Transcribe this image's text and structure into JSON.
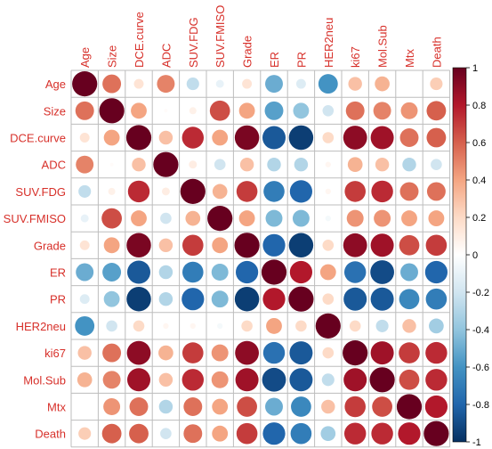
{
  "chart_data": {
    "type": "heatmap",
    "variables": [
      "Age",
      "Size",
      "DCE.curve",
      "ADC",
      "SUV.FDG",
      "SUV.FMISO",
      "Grade",
      "ER",
      "PR",
      "HER2neu",
      "ki67",
      "Mol.Sub",
      "Mtx",
      "Death"
    ],
    "matrix": [
      [
        1.0,
        0.55,
        0.15,
        0.5,
        -0.25,
        -0.1,
        0.15,
        -0.5,
        -0.15,
        -0.6,
        0.3,
        0.35,
        0.0,
        0.25
      ],
      [
        0.55,
        1.0,
        0.4,
        0.02,
        0.08,
        0.65,
        0.4,
        -0.55,
        -0.4,
        -0.2,
        0.55,
        0.5,
        0.45,
        0.6
      ],
      [
        0.15,
        0.4,
        1.0,
        0.3,
        0.75,
        0.4,
        0.95,
        -0.85,
        -0.95,
        0.2,
        0.9,
        0.85,
        0.55,
        0.6
      ],
      [
        0.5,
        0.02,
        0.3,
        1.0,
        0.1,
        -0.2,
        0.3,
        -0.3,
        -0.3,
        0.05,
        0.35,
        0.3,
        -0.3,
        -0.2
      ],
      [
        -0.25,
        0.08,
        0.75,
        0.1,
        1.0,
        0.35,
        0.7,
        -0.7,
        -0.8,
        0.05,
        0.7,
        0.75,
        0.55,
        0.55
      ],
      [
        -0.1,
        0.65,
        0.4,
        -0.2,
        0.35,
        1.0,
        0.4,
        -0.45,
        -0.45,
        -0.05,
        0.45,
        0.45,
        0.4,
        0.4
      ],
      [
        0.15,
        0.4,
        0.95,
        0.3,
        0.7,
        0.4,
        1.0,
        -0.8,
        -0.95,
        0.2,
        0.9,
        0.85,
        0.65,
        0.7
      ],
      [
        -0.5,
        -0.55,
        -0.85,
        -0.3,
        -0.7,
        -0.45,
        -0.8,
        1.0,
        0.8,
        0.4,
        -0.75,
        -0.9,
        -0.5,
        -0.8
      ],
      [
        -0.15,
        -0.4,
        -0.95,
        -0.3,
        -0.8,
        -0.45,
        -0.95,
        0.8,
        1.0,
        0.2,
        -0.85,
        -0.85,
        -0.65,
        -0.7
      ],
      [
        -0.6,
        -0.2,
        0.2,
        0.05,
        0.05,
        -0.05,
        0.2,
        0.4,
        0.2,
        1.0,
        0.2,
        -0.25,
        0.3,
        -0.35
      ],
      [
        0.3,
        0.55,
        0.9,
        0.35,
        0.7,
        0.45,
        0.9,
        -0.75,
        -0.85,
        0.2,
        1.0,
        0.85,
        0.7,
        0.75
      ],
      [
        0.35,
        0.5,
        0.85,
        0.3,
        0.75,
        0.45,
        0.85,
        -0.9,
        -0.85,
        -0.25,
        0.85,
        1.0,
        0.65,
        0.75
      ],
      [
        0.0,
        0.45,
        0.55,
        -0.3,
        0.55,
        0.4,
        0.65,
        -0.5,
        -0.65,
        0.3,
        0.7,
        0.65,
        1.0,
        0.8
      ],
      [
        0.25,
        0.6,
        0.6,
        -0.2,
        0.55,
        0.4,
        0.7,
        -0.8,
        -0.7,
        -0.35,
        0.75,
        0.75,
        0.8,
        1.0
      ]
    ],
    "colorbar": {
      "range": [
        -1,
        1
      ],
      "ticks": [
        "1",
        "0.8",
        "0.6",
        "0.4",
        "0.2",
        "0",
        "-0.2",
        "-0.4",
        "-0.6",
        "-0.8",
        "-1"
      ],
      "tick_values": [
        1,
        0.8,
        0.6,
        0.4,
        0.2,
        0,
        -0.2,
        -0.4,
        -0.6,
        -0.8,
        -1
      ],
      "colors": [
        "#67001f",
        "#b2182b",
        "#d6604d",
        "#f4a582",
        "#fddbc7",
        "#ffffff",
        "#d1e5f0",
        "#92c5de",
        "#4393c3",
        "#2166ac",
        "#053061"
      ]
    },
    "label_color": "#d7302a",
    "grid": true,
    "legend": "right"
  }
}
